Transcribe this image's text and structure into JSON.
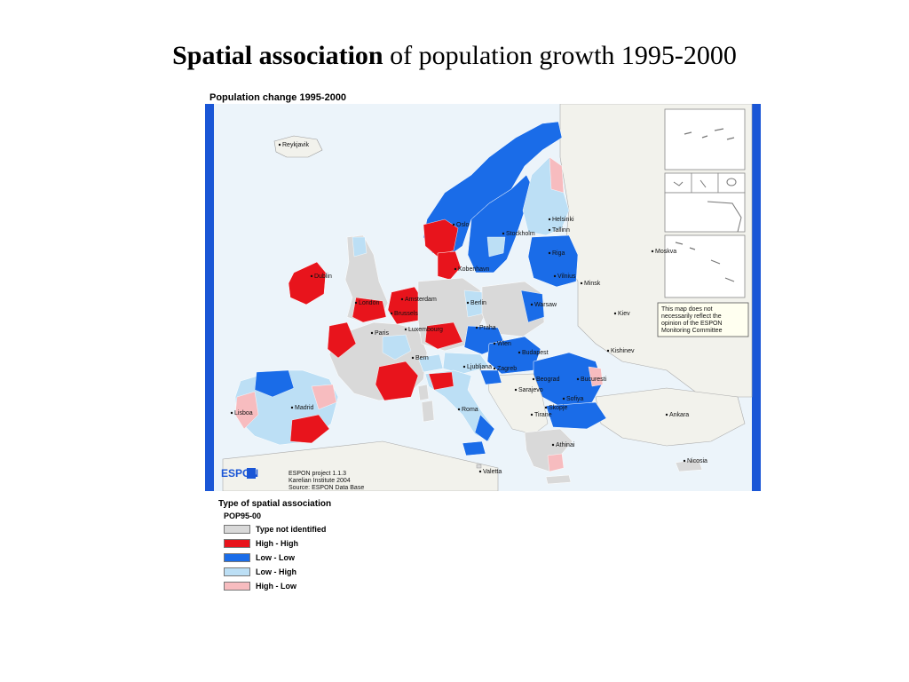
{
  "title": {
    "bold": "Spatial association",
    "rest": " of population growth 1995-2000"
  },
  "map": {
    "caption": "Population change 1995-2000",
    "disclaimer": [
      "This map does not",
      "necessarily reflect the",
      "opinion of the ESPON",
      "Monitoring Committee"
    ],
    "logo_text": "ESPON",
    "credits": [
      "ESPON project 1.1.3",
      "Karelian Institute 2004",
      "Source: ESPON Data Base"
    ],
    "cities": [
      "Reykjavik",
      "Oslo",
      "Helsinki",
      "Stockholm",
      "Tallinn",
      "Riga",
      "Kobenhavn",
      "Vilnius",
      "Dublin",
      "Minsk",
      "London",
      "Amsterdam",
      "Berlin",
      "Warsaw",
      "Brussels",
      "Luxembourg",
      "Paris",
      "Praha",
      "Kiev",
      "Wien",
      "Bern",
      "Budapest",
      "Ljubljana",
      "Zagreb",
      "Kishinev",
      "Beograd",
      "Bucuresti",
      "Sarajevo",
      "Madrid",
      "Lisboa",
      "Roma",
      "Skopje",
      "Sofiya",
      "Tirane",
      "Ankara",
      "Athinai",
      "Valetta",
      "Moskva",
      "Nicosia"
    ],
    "colors": {
      "frame_blue": "#1a56d6",
      "sea": "#ecf4fa",
      "non_espon": "#f2f2ec",
      "not_identified": "#d9d9d9",
      "high_high": "#e8141c",
      "low_low": "#1a6ce8",
      "low_high": "#bcdff5",
      "high_low": "#f7bcbf"
    }
  },
  "legend": {
    "title": "Type of spatial association",
    "code": "POP95-00",
    "items": [
      {
        "label": "Type not identified",
        "color": "#d9d9d9"
      },
      {
        "label": "High - High",
        "color": "#e8141c"
      },
      {
        "label": "Low - Low",
        "color": "#1a6ce8"
      },
      {
        "label": "Low - High",
        "color": "#bcdff5"
      },
      {
        "label": "High - Low",
        "color": "#f7bcbf"
      }
    ]
  }
}
